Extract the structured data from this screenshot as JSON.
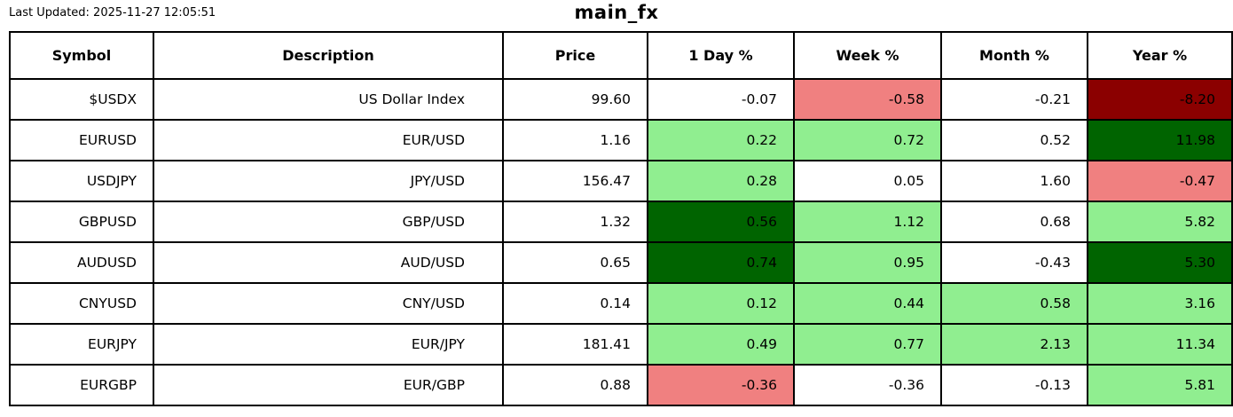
{
  "meta": {
    "last_updated": "Last Updated: 2025-11-27 12:05:51"
  },
  "colors": {
    "positive": "#90EE90",
    "positive_strong": "#006400",
    "negative": "#F08080",
    "negative_strong": "#8B0000",
    "neutral": "#FFFFFF",
    "border": "#000000",
    "text": "#000000"
  },
  "chart_data": {
    "type": "table",
    "title": "main_fx",
    "subtitle": "Last Updated: 2025-11-27 12:05:51",
    "legend_position": "none",
    "grid": "full-cell-borders",
    "columns": [
      "Symbol",
      "Description",
      "Price",
      "1 Day %",
      "Week %",
      "Month %",
      "Year %"
    ],
    "rows": [
      {
        "symbol": "$USDX",
        "description": "US Dollar Index",
        "price": "99.60",
        "day_pct": {
          "value": "-0.07",
          "bg": "neutral"
        },
        "week_pct": {
          "value": "-0.58",
          "bg": "negative"
        },
        "month_pct": {
          "value": "-0.21",
          "bg": "neutral"
        },
        "year_pct": {
          "value": "-8.20",
          "bg": "negative_strong"
        }
      },
      {
        "symbol": "EURUSD",
        "description": "EUR/USD",
        "price": "1.16",
        "day_pct": {
          "value": "0.22",
          "bg": "positive"
        },
        "week_pct": {
          "value": "0.72",
          "bg": "positive"
        },
        "month_pct": {
          "value": "0.52",
          "bg": "neutral"
        },
        "year_pct": {
          "value": "11.98",
          "bg": "positive_strong"
        }
      },
      {
        "symbol": "USDJPY",
        "description": "JPY/USD",
        "price": "156.47",
        "day_pct": {
          "value": "0.28",
          "bg": "positive"
        },
        "week_pct": {
          "value": "0.05",
          "bg": "neutral"
        },
        "month_pct": {
          "value": "1.60",
          "bg": "neutral"
        },
        "year_pct": {
          "value": "-0.47",
          "bg": "negative"
        }
      },
      {
        "symbol": "GBPUSD",
        "description": "GBP/USD",
        "price": "1.32",
        "day_pct": {
          "value": "0.56",
          "bg": "positive_strong"
        },
        "week_pct": {
          "value": "1.12",
          "bg": "positive"
        },
        "month_pct": {
          "value": "0.68",
          "bg": "neutral"
        },
        "year_pct": {
          "value": "5.82",
          "bg": "positive"
        }
      },
      {
        "symbol": "AUDUSD",
        "description": "AUD/USD",
        "price": "0.65",
        "day_pct": {
          "value": "0.74",
          "bg": "positive_strong"
        },
        "week_pct": {
          "value": "0.95",
          "bg": "positive"
        },
        "month_pct": {
          "value": "-0.43",
          "bg": "neutral"
        },
        "year_pct": {
          "value": "5.30",
          "bg": "positive_strong"
        }
      },
      {
        "symbol": "CNYUSD",
        "description": "CNY/USD",
        "price": "0.14",
        "day_pct": {
          "value": "0.12",
          "bg": "positive"
        },
        "week_pct": {
          "value": "0.44",
          "bg": "positive"
        },
        "month_pct": {
          "value": "0.58",
          "bg": "positive"
        },
        "year_pct": {
          "value": "3.16",
          "bg": "positive"
        }
      },
      {
        "symbol": "EURJPY",
        "description": "EUR/JPY",
        "price": "181.41",
        "day_pct": {
          "value": "0.49",
          "bg": "positive"
        },
        "week_pct": {
          "value": "0.77",
          "bg": "positive"
        },
        "month_pct": {
          "value": "2.13",
          "bg": "positive"
        },
        "year_pct": {
          "value": "11.34",
          "bg": "positive"
        }
      },
      {
        "symbol": "EURGBP",
        "description": "EUR/GBP",
        "price": "0.88",
        "day_pct": {
          "value": "-0.36",
          "bg": "negative"
        },
        "week_pct": {
          "value": "-0.36",
          "bg": "neutral"
        },
        "month_pct": {
          "value": "-0.13",
          "bg": "neutral"
        },
        "year_pct": {
          "value": "5.81",
          "bg": "positive"
        }
      }
    ]
  }
}
